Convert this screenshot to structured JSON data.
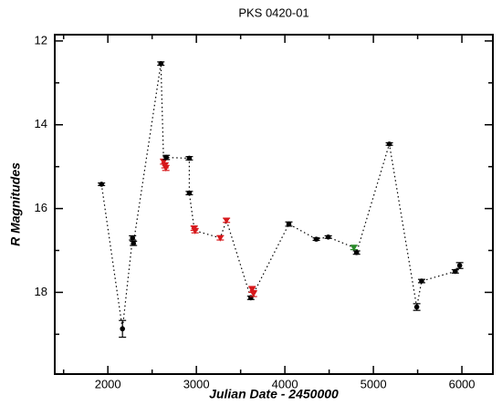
{
  "chart_data": {
    "type": "scatter",
    "title": "PKS 0420-01",
    "x_label": "Julian Date - 2450000",
    "y_label": "R Magnitudes",
    "x": [
      1928,
      2165,
      2279,
      2289,
      2599,
      2630,
      2645,
      2655,
      2660,
      2920,
      2920,
      2975,
      2985,
      3270,
      3340,
      3615,
      3630,
      3645,
      4045,
      4355,
      4490,
      4780,
      4810,
      5180,
      5490,
      5545,
      5925,
      5975
    ],
    "y": [
      15.42,
      18.87,
      16.7,
      16.83,
      12.54,
      14.88,
      14.97,
      15.03,
      14.78,
      14.8,
      15.63,
      16.47,
      16.53,
      16.7,
      16.28,
      18.13,
      17.93,
      18.03,
      16.37,
      16.73,
      16.68,
      16.93,
      17.05,
      14.46,
      18.35,
      17.73,
      17.5,
      17.36
    ],
    "yerr": [
      0.03,
      0.2,
      0.05,
      0.05,
      0.04,
      0.06,
      0.06,
      0.06,
      0.05,
      0.04,
      0.04,
      0.05,
      0.05,
      0.05,
      0.05,
      0.04,
      0.07,
      0.07,
      0.05,
      0.03,
      0.03,
      0.05,
      0.04,
      0.03,
      0.08,
      0.04,
      0.04,
      0.07
    ],
    "point_colors": [
      "#000000",
      "#000000",
      "#000000",
      "#000000",
      "#000000",
      "#d7191c",
      "#d7191c",
      "#d7191c",
      "#000000",
      "#000000",
      "#000000",
      "#d7191c",
      "#d7191c",
      "#d7191c",
      "#d7191c",
      "#000000",
      "#d7191c",
      "#d7191c",
      "#000000",
      "#000000",
      "#000000",
      "#2a8a2a",
      "#000000",
      "#000000",
      "#000000",
      "#000000",
      "#000000",
      "#000000"
    ],
    "line_style": "dotted",
    "line_color": "#000000",
    "xlim": [
      1400,
      6350
    ],
    "ylim": [
      19.95,
      11.85
    ],
    "xticks": [
      2000,
      3000,
      4000,
      5000,
      6000
    ],
    "yticks": [
      12,
      14,
      16,
      18
    ],
    "xminorticks": [
      1500,
      2500,
      3500,
      4500,
      5500
    ],
    "yminorticks": [
      13,
      15,
      17,
      19
    ]
  }
}
